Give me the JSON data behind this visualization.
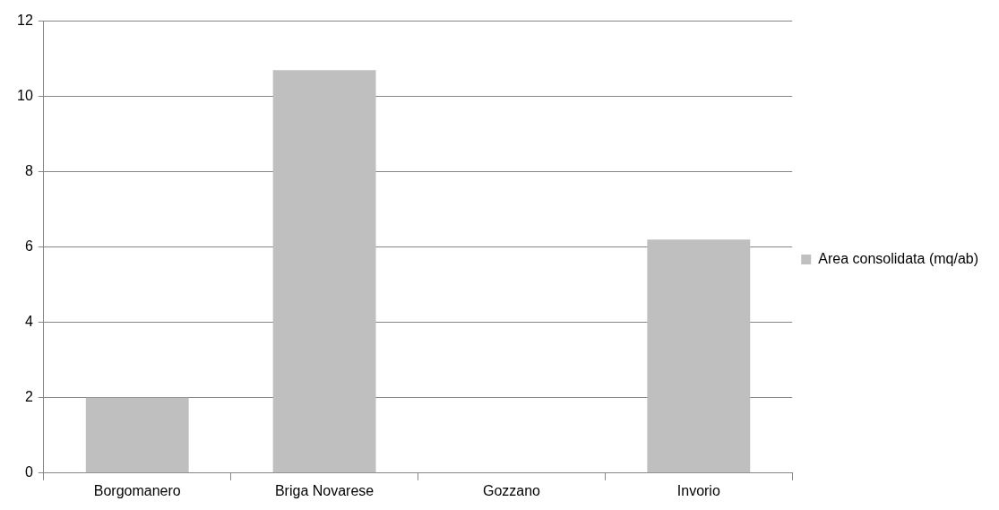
{
  "chart_data": {
    "type": "bar",
    "categories": [
      "Borgomanero",
      "Briga Novarese",
      "Gozzano",
      "Invorio"
    ],
    "series": [
      {
        "name": "Area consolidata (mq/ab)",
        "color": "#bfbfbf",
        "values": [
          2.0,
          10.7,
          0,
          6.2
        ]
      }
    ],
    "ylim": [
      0,
      12
    ],
    "yticks": [
      0,
      2,
      4,
      6,
      8,
      10,
      12
    ],
    "grid": "y",
    "legend": "right"
  }
}
